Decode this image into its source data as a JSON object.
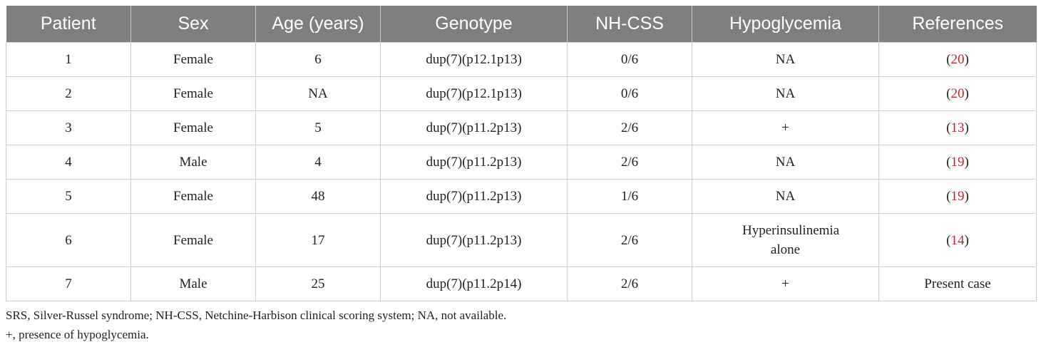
{
  "table": {
    "headers": [
      "Patient",
      "Sex",
      "Age (years)",
      "Genotype",
      "NH-CSS",
      "Hypoglycemia",
      "References"
    ],
    "rows": [
      {
        "patient": "1",
        "sex": "Female",
        "age": "6",
        "genotype": "dup(7)(p12.1p13)",
        "nhcss": "0/6",
        "hypoglycemia": "NA",
        "ref_num": "20",
        "ref_text": ""
      },
      {
        "patient": "2",
        "sex": "Female",
        "age": "NA",
        "genotype": "dup(7)(p12.1p13)",
        "nhcss": "0/6",
        "hypoglycemia": "NA",
        "ref_num": "20",
        "ref_text": ""
      },
      {
        "patient": "3",
        "sex": "Female",
        "age": "5",
        "genotype": "dup(7)(p11.2p13)",
        "nhcss": "2/6",
        "hypoglycemia": "+",
        "ref_num": "13",
        "ref_text": ""
      },
      {
        "patient": "4",
        "sex": "Male",
        "age": "4",
        "genotype": "dup(7)(p11.2p13)",
        "nhcss": "2/6",
        "hypoglycemia": "NA",
        "ref_num": "19",
        "ref_text": ""
      },
      {
        "patient": "5",
        "sex": "Female",
        "age": "48",
        "genotype": "dup(7)(p11.2p13)",
        "nhcss": "1/6",
        "hypoglycemia": "NA",
        "ref_num": "19",
        "ref_text": ""
      },
      {
        "patient": "6",
        "sex": "Female",
        "age": "17",
        "genotype": "dup(7)(p11.2p13)",
        "nhcss": "2/6",
        "hypoglycemia": "Hyperinsulinemia alone",
        "ref_num": "14",
        "ref_text": ""
      },
      {
        "patient": "7",
        "sex": "Male",
        "age": "25",
        "genotype": "dup(7)(p11.2p14)",
        "nhcss": "2/6",
        "hypoglycemia": "+",
        "ref_num": "",
        "ref_text": "Present case"
      }
    ]
  },
  "footnotes": [
    "SRS, Silver-Russel syndrome; NH-CSS, Netchine-Harbison clinical scoring system; NA, not available.",
    "+, presence of hypoglycemia."
  ],
  "colors": {
    "header_bg": "#7f7f7f",
    "header_text": "#ffffff",
    "reference_link": "#c0282d",
    "grid_line": "#cfcfcf"
  }
}
